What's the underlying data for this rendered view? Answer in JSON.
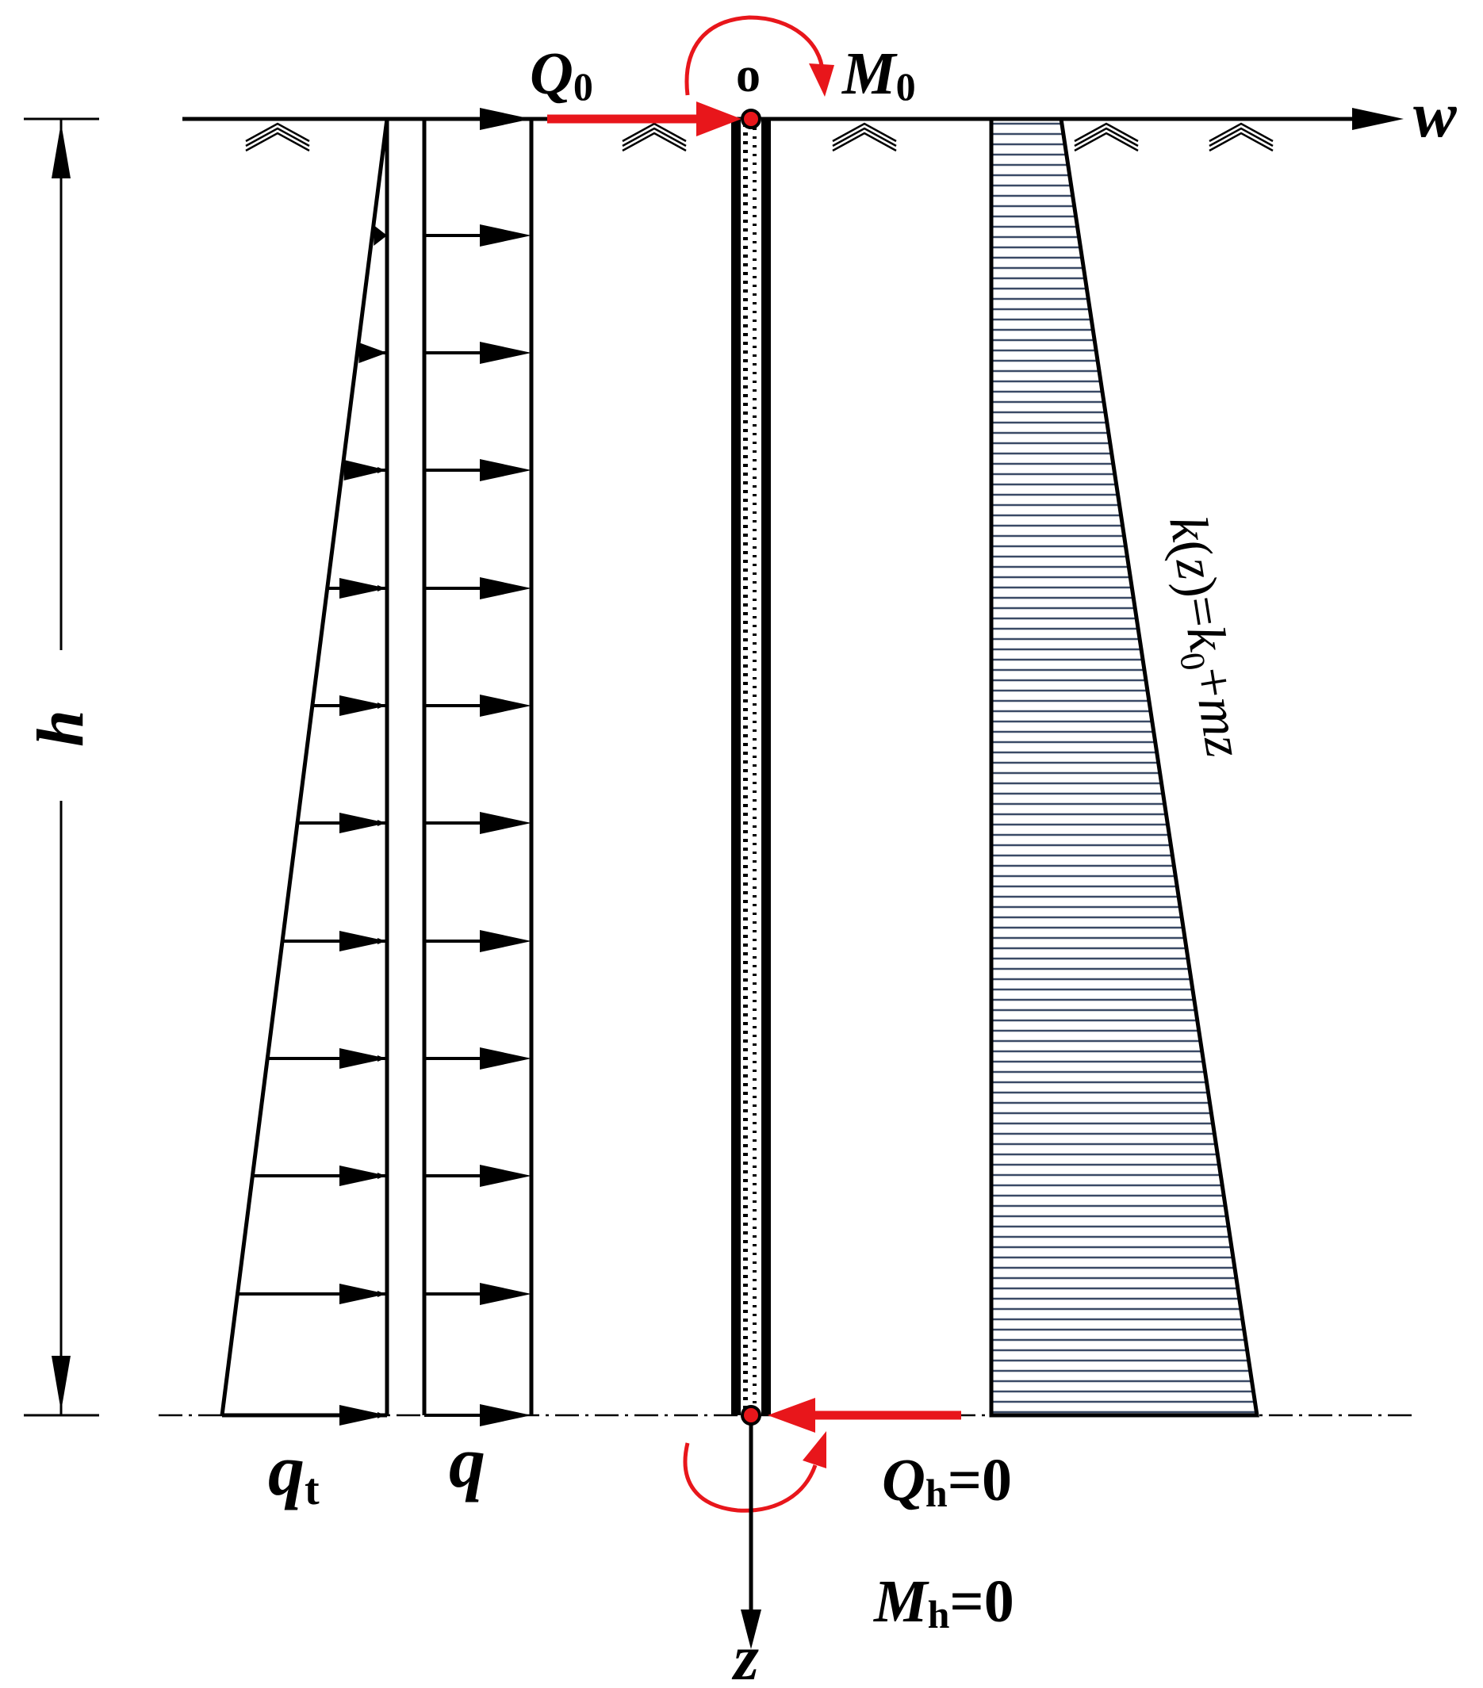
{
  "labels": {
    "Q0": {
      "sym": "Q",
      "sub": "0"
    },
    "o": "o",
    "M0": {
      "sym": "M",
      "sub": "0"
    },
    "w": "w",
    "h": "h",
    "qt": {
      "sym": "q",
      "sub": "t"
    },
    "q": "q",
    "z": "z",
    "Qh": {
      "sym": "Q",
      "sub": "h",
      "eq": "=0"
    },
    "Mh": {
      "sym": "M",
      "sub": "h",
      "eq": "=0"
    },
    "kz": {
      "k1": "k",
      "p1": "(",
      "z1": "z",
      "p2": ")=",
      "k2": "k",
      "s0": "0",
      "plus": "+",
      "mz": "mz"
    }
  },
  "colors": {
    "ink": "#000000",
    "force": "#e8161b",
    "hatch": "#3a4a66"
  },
  "icons": [
    "ground-surface-symbol",
    "force-arrow",
    "moment-arrow",
    "pile",
    "subgrade-reaction-profile"
  ]
}
